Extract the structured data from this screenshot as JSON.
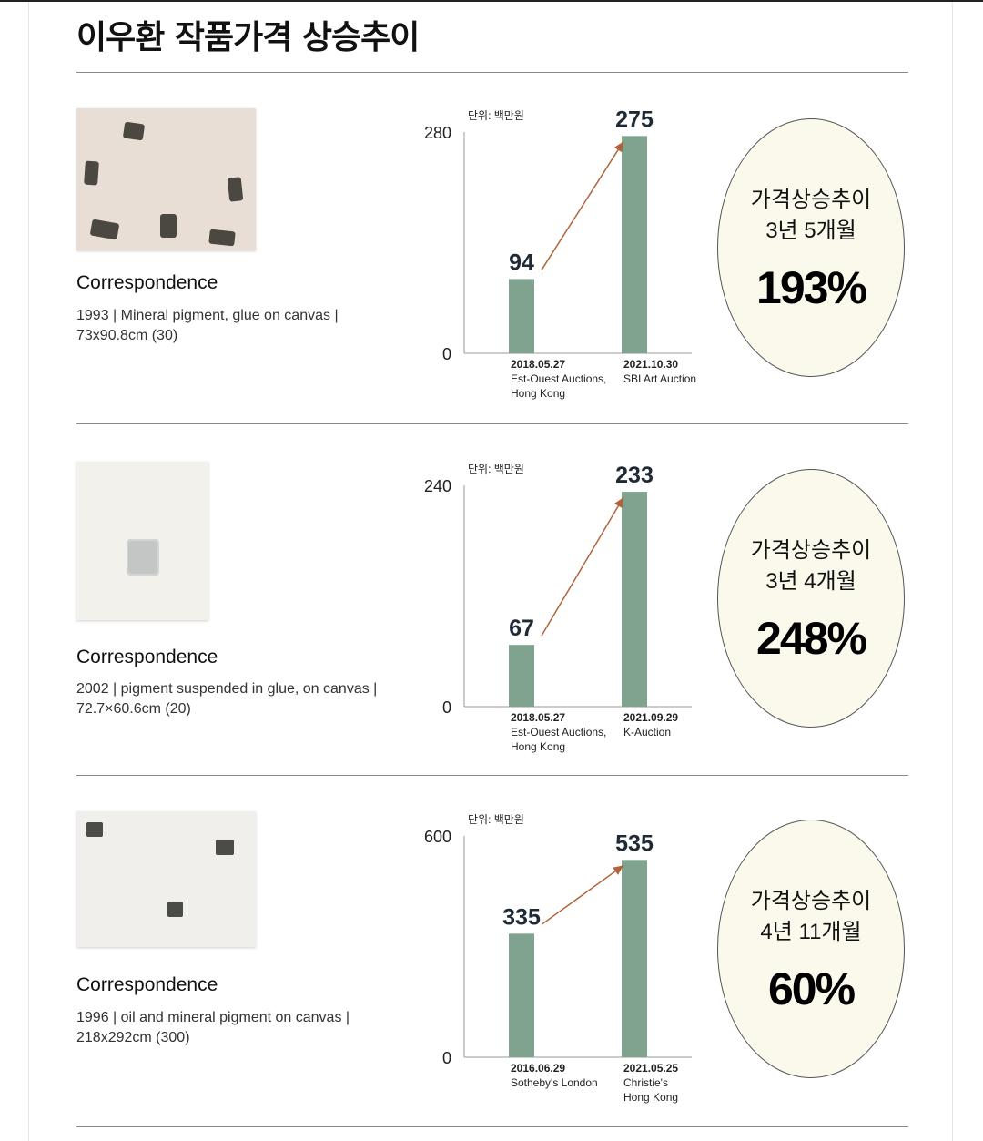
{
  "title": "이우환 작품가격 상승추이",
  "colors": {
    "bar": "#7fa38e",
    "arrow": "#b0643a",
    "bubble_bg": "#fbf8ec"
  },
  "panels": [
    {
      "art_title": "Correspondence",
      "art_meta": "1993  |  Mineral pigment, glue on canvas  |\n73x90.8cm (30)",
      "bubble_label1": "가격상승추이",
      "bubble_label2": "3년 5개월",
      "bubble_pct": "193%"
    },
    {
      "art_title": "Correspondence",
      "art_meta": "2002  |  pigment suspended in glue, on canvas |\n72.7×60.6cm (20)",
      "bubble_label1": "가격상승추이",
      "bubble_label2": "3년 4개월",
      "bubble_pct": "248%"
    },
    {
      "art_title": "Correspondence",
      "art_meta": "1996  |  oil and mineral pigment on canvas  |\n218x292cm (300)",
      "bubble_label1": "가격상승추이",
      "bubble_label2": "4년 11개월",
      "bubble_pct": "60%"
    }
  ],
  "chart_data": [
    {
      "type": "bar",
      "unit_label": "단위: 백만원",
      "categories": [
        [
          "2018.05.27",
          "Est-Ouest Auctions,",
          "Hong Kong"
        ],
        [
          "2021.10.30",
          "SBI Art Auction"
        ]
      ],
      "values": [
        94,
        275
      ],
      "ylim": [
        0,
        280
      ],
      "yticks": [
        0,
        280
      ]
    },
    {
      "type": "bar",
      "unit_label": "단위: 백만원",
      "categories": [
        [
          "2018.05.27",
          "Est-Ouest Auctions,",
          "Hong Kong"
        ],
        [
          "2021.09.29",
          "K-Auction"
        ]
      ],
      "values": [
        67,
        233
      ],
      "ylim": [
        0,
        240
      ],
      "yticks": [
        0,
        240
      ]
    },
    {
      "type": "bar",
      "unit_label": "단위: 백만원",
      "categories": [
        [
          "2016.06.29",
          "Sotheby's London"
        ],
        [
          "2021.05.25",
          "Christie's",
          "Hong Kong"
        ]
      ],
      "values": [
        335,
        535
      ],
      "ylim": [
        0,
        600
      ],
      "yticks": [
        0,
        600
      ]
    }
  ]
}
